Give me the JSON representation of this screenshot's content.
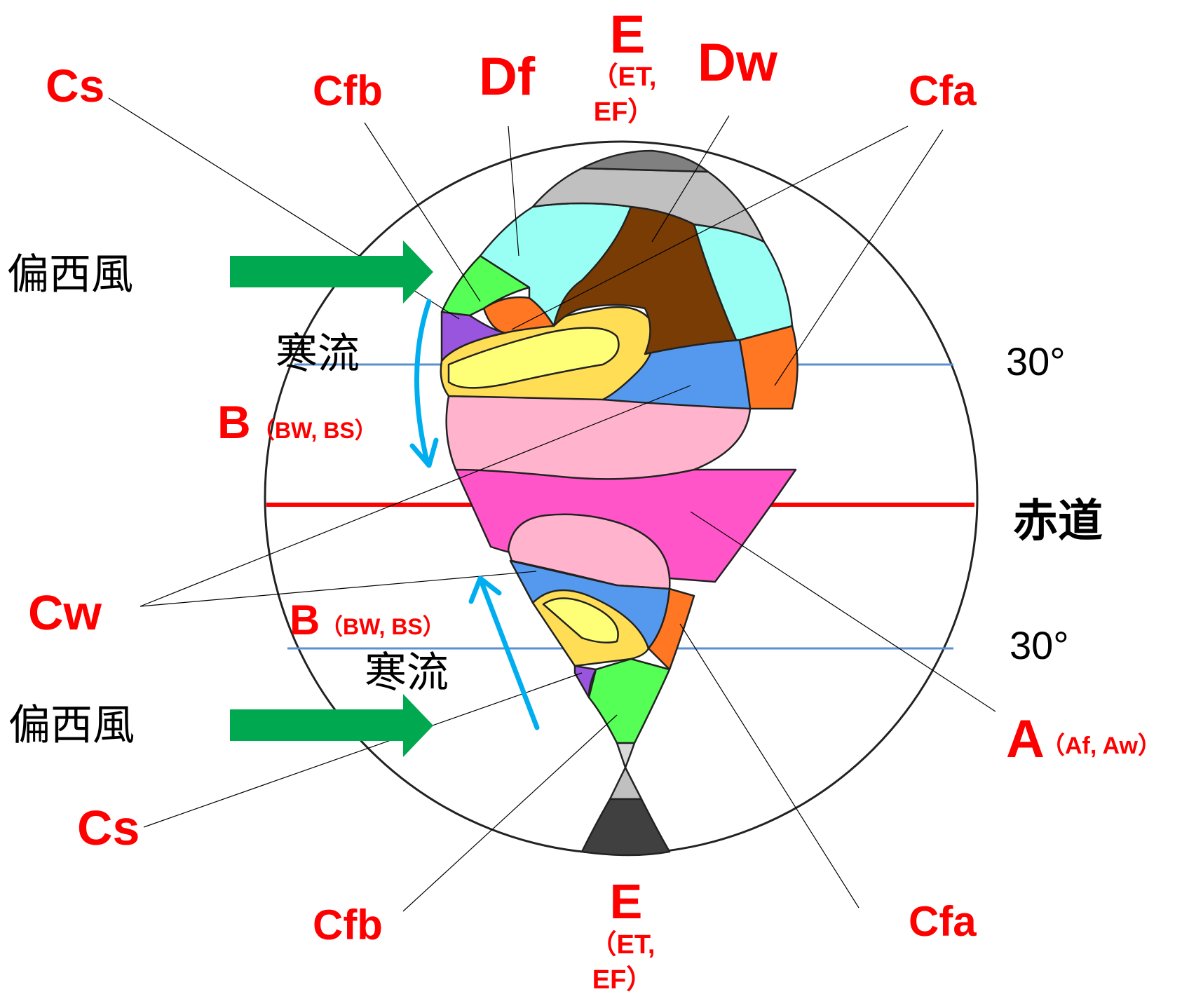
{
  "colors": {
    "label_red": "#ff0000",
    "text_black": "#000000",
    "wind_arrow": "#00a850",
    "current_arrow": "#00aeef",
    "equator": "#ff0000",
    "latitude_line": "#5b8fd1",
    "E_dark": "#808080",
    "E_light": "#c0c0c0",
    "E_south_dark": "#404040",
    "Df": "#99fff5",
    "Dw": "#7a3c05",
    "Cfb": "#55ff55",
    "Cfa": "#ff7722",
    "Cs": "#9955dd",
    "Cw": "#5599ee",
    "BS": "#ffdd55",
    "BW": "#ffff77",
    "Aw": "#ffb3cc",
    "Af": "#ff55c8"
  },
  "labels": {
    "E_north": "E",
    "E_north_sub1": "（ET,",
    "E_north_sub2": "EF）",
    "E_south": "E",
    "E_south_sub1": "（ET,",
    "E_south_sub2": "EF）",
    "Cs_north": "Cs",
    "Cs_south": "Cs",
    "Cfb_north": "Cfb",
    "Cfb_south": "Cfb",
    "Df": "Df",
    "Dw": "Dw",
    "Cfa_north": "Cfa",
    "Cfa_south": "Cfa",
    "Cw": "Cw",
    "B_north": "B",
    "B_north_sub": "（BW, BS）",
    "B_south": "B",
    "B_south_sub": "（BW, BS）",
    "A": "A",
    "A_sub": "（Af, Aw）"
  },
  "annotations": {
    "westerlies_north": "偏西風",
    "westerlies_south": "偏西風",
    "cold_current_north": "寒流",
    "cold_current_south": "寒流",
    "equator": "赤道",
    "lat_north": "30°",
    "lat_south": "30°"
  }
}
